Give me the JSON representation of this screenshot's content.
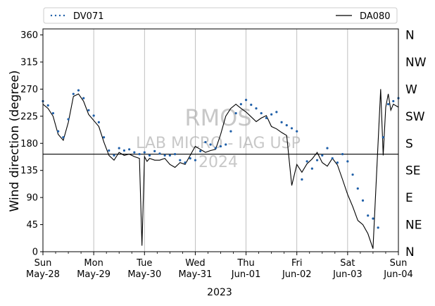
{
  "chart_data": {
    "type": "line",
    "ylabel": "Wind direction (degree)",
    "xlabel": "2023",
    "ylim": [
      0,
      370
    ],
    "xlim": [
      0,
      7
    ],
    "grid": "vertical lines at each day",
    "legend_placement": "above plot, full width",
    "yticks": [
      0,
      45,
      90,
      135,
      180,
      225,
      270,
      315,
      360
    ],
    "ytick_labels": [
      "0",
      "45",
      "90",
      "135",
      "180",
      "225",
      "270",
      "315",
      "360"
    ],
    "compass_labels": [
      {
        "value": 0,
        "label": "N"
      },
      {
        "value": 45,
        "label": "NE"
      },
      {
        "value": 90,
        "label": "E"
      },
      {
        "value": 135,
        "label": "SE"
      },
      {
        "value": 180,
        "label": "S"
      },
      {
        "value": 225,
        "label": "SW"
      },
      {
        "value": 270,
        "label": "W"
      },
      {
        "value": 315,
        "label": "NW"
      },
      {
        "value": 360,
        "label": "N"
      }
    ],
    "xticks": [
      {
        "x": 0,
        "weekday": "Sun",
        "date": "May-28"
      },
      {
        "x": 1,
        "weekday": "Mon",
        "date": "May-29"
      },
      {
        "x": 2,
        "weekday": "Tue",
        "date": "May-30"
      },
      {
        "x": 3,
        "weekday": "Wed",
        "date": "May-31"
      },
      {
        "x": 4,
        "weekday": "Thu",
        "date": "Jun-01"
      },
      {
        "x": 5,
        "weekday": "Fri",
        "date": "Jun-02"
      },
      {
        "x": 6,
        "weekday": "Sat",
        "date": "Jun-03"
      },
      {
        "x": 7,
        "weekday": "Sun",
        "date": "Jun-04"
      }
    ],
    "minor_ticks_per_day": 4,
    "reference_line": {
      "y": 162
    },
    "watermark": [
      "RMOS",
      "LAB MICRO - IAG USP",
      "2024"
    ],
    "series": [
      {
        "name": "DV071",
        "style": "dotted markers",
        "color": "#1f5fa8",
        "x": [
          0.0,
          0.1,
          0.2,
          0.3,
          0.4,
          0.5,
          0.6,
          0.7,
          0.8,
          0.9,
          1.0,
          1.1,
          1.2,
          1.3,
          1.4,
          1.5,
          1.6,
          1.7,
          1.8,
          1.9,
          2.0,
          2.1,
          2.2,
          2.3,
          2.4,
          2.5,
          2.6,
          2.7,
          2.8,
          2.9,
          3.0,
          3.1,
          3.2,
          3.3,
          3.4,
          3.5,
          3.6,
          3.7,
          3.8,
          3.9,
          4.0,
          4.1,
          4.2,
          4.3,
          4.4,
          4.5,
          4.6,
          4.7,
          4.8,
          4.9,
          5.0,
          5.1,
          5.2,
          5.3,
          5.4,
          5.5,
          5.6,
          5.7,
          5.8,
          5.9,
          6.0,
          6.1,
          6.2,
          6.3,
          6.4,
          6.5,
          6.6,
          6.7,
          6.8,
          6.9,
          7.0
        ],
        "values": [
          250,
          243,
          230,
          200,
          190,
          220,
          262,
          268,
          255,
          235,
          226,
          215,
          190,
          168,
          160,
          172,
          168,
          170,
          165,
          162,
          165,
          160,
          167,
          163,
          160,
          160,
          162,
          152,
          148,
          155,
          152,
          167,
          182,
          178,
          172,
          175,
          178,
          200,
          230,
          245,
          252,
          244,
          238,
          230,
          222,
          228,
          232,
          215,
          210,
          205,
          200,
          120,
          150,
          138,
          152,
          160,
          172,
          155,
          148,
          162,
          150,
          128,
          105,
          85,
          60,
          55,
          40,
          190,
          245,
          250,
          255
        ]
      },
      {
        "name": "DA080",
        "style": "solid line",
        "color": "#000000",
        "x": [
          0.0,
          0.1,
          0.2,
          0.3,
          0.4,
          0.5,
          0.6,
          0.7,
          0.8,
          0.9,
          1.0,
          1.1,
          1.2,
          1.3,
          1.4,
          1.5,
          1.6,
          1.7,
          1.8,
          1.9,
          1.95,
          2.0,
          2.05,
          2.1,
          2.2,
          2.3,
          2.4,
          2.5,
          2.6,
          2.7,
          2.8,
          2.9,
          3.0,
          3.1,
          3.2,
          3.3,
          3.4,
          3.5,
          3.6,
          3.7,
          3.8,
          3.9,
          4.0,
          4.1,
          4.2,
          4.3,
          4.4,
          4.5,
          4.6,
          4.7,
          4.8,
          4.9,
          5.0,
          5.1,
          5.2,
          5.3,
          5.4,
          5.5,
          5.6,
          5.7,
          5.8,
          5.9,
          6.0,
          6.1,
          6.2,
          6.3,
          6.4,
          6.5,
          6.6,
          6.65,
          6.7,
          6.75,
          6.8,
          6.85,
          6.9,
          7.0
        ],
        "values": [
          245,
          238,
          225,
          195,
          185,
          215,
          258,
          262,
          250,
          228,
          218,
          208,
          182,
          160,
          152,
          165,
          160,
          162,
          158,
          155,
          10,
          158,
          150,
          155,
          152,
          152,
          155,
          145,
          140,
          148,
          145,
          160,
          175,
          170,
          165,
          168,
          170,
          195,
          225,
          238,
          245,
          238,
          232,
          224,
          216,
          222,
          226,
          208,
          204,
          198,
          193,
          110,
          145,
          132,
          146,
          154,
          165,
          148,
          142,
          155,
          144,
          120,
          95,
          75,
          52,
          45,
          30,
          5,
          180,
          270,
          160,
          240,
          262,
          235,
          245,
          240
        ]
      }
    ]
  }
}
